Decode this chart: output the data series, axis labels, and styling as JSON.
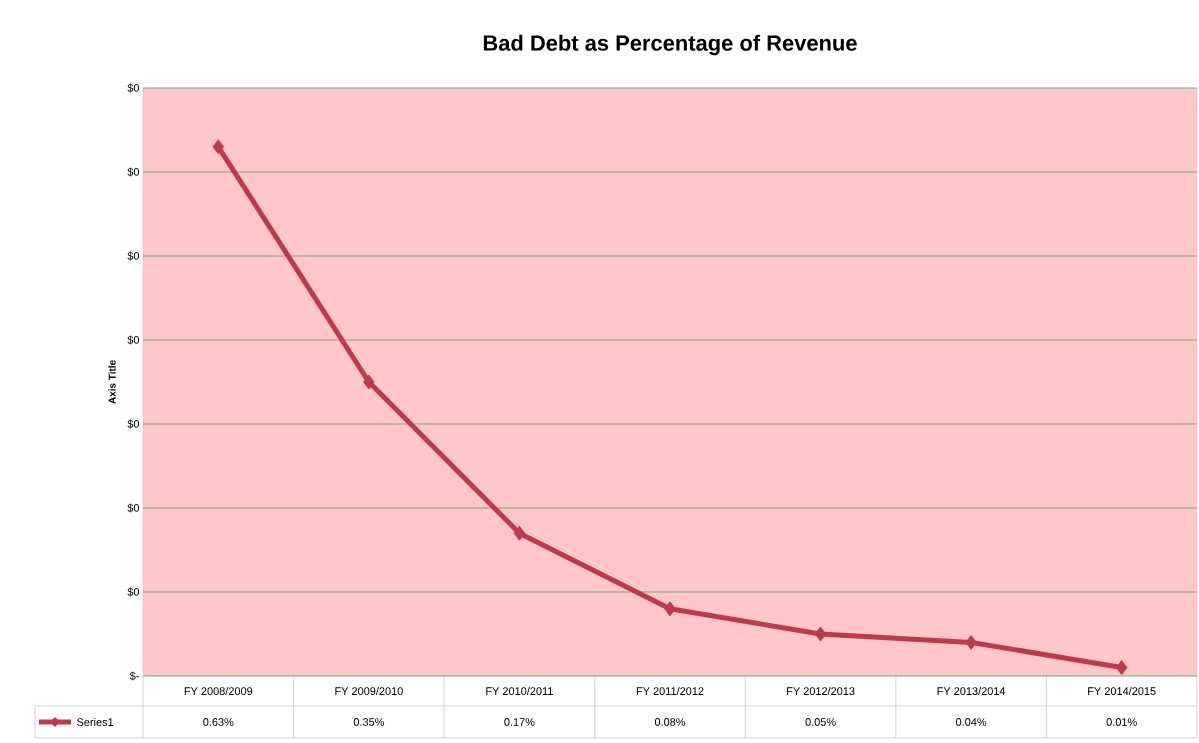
{
  "chart_data": {
    "type": "line",
    "title": "Bad Debt as Percentage of Revenue",
    "ylabel": "Axis Title",
    "categories": [
      "FY 2008/2009",
      "FY 2009/2010",
      "FY 2010/2011",
      "FY 2011/2012",
      "FY 2012/2013",
      "FY 2013/2014",
      "FY 2014/2015"
    ],
    "series": [
      {
        "name": "Series1",
        "color": "#c0394a",
        "values": [
          0.0063,
          0.0035,
          0.0017,
          0.0008,
          0.0005,
          0.0004,
          0.0001
        ],
        "value_labels": [
          "0.63%",
          "0.35%",
          "0.17%",
          "0.08%",
          "0.05%",
          "0.04%",
          "0.01%"
        ]
      }
    ],
    "ylim": [
      0,
      0.007
    ],
    "yticks": [
      {
        "value": 0,
        "label": "$-"
      },
      {
        "value": 0.001,
        "label": "$0"
      },
      {
        "value": 0.002,
        "label": "$0"
      },
      {
        "value": 0.003,
        "label": "$0"
      },
      {
        "value": 0.004,
        "label": "$0"
      },
      {
        "value": 0.005,
        "label": "$0"
      },
      {
        "value": 0.006,
        "label": "$0"
      },
      {
        "value": 0.007,
        "label": "$0"
      }
    ],
    "grid": "y",
    "legend": "bottom",
    "marker": "diamond",
    "line_style": "solid"
  }
}
